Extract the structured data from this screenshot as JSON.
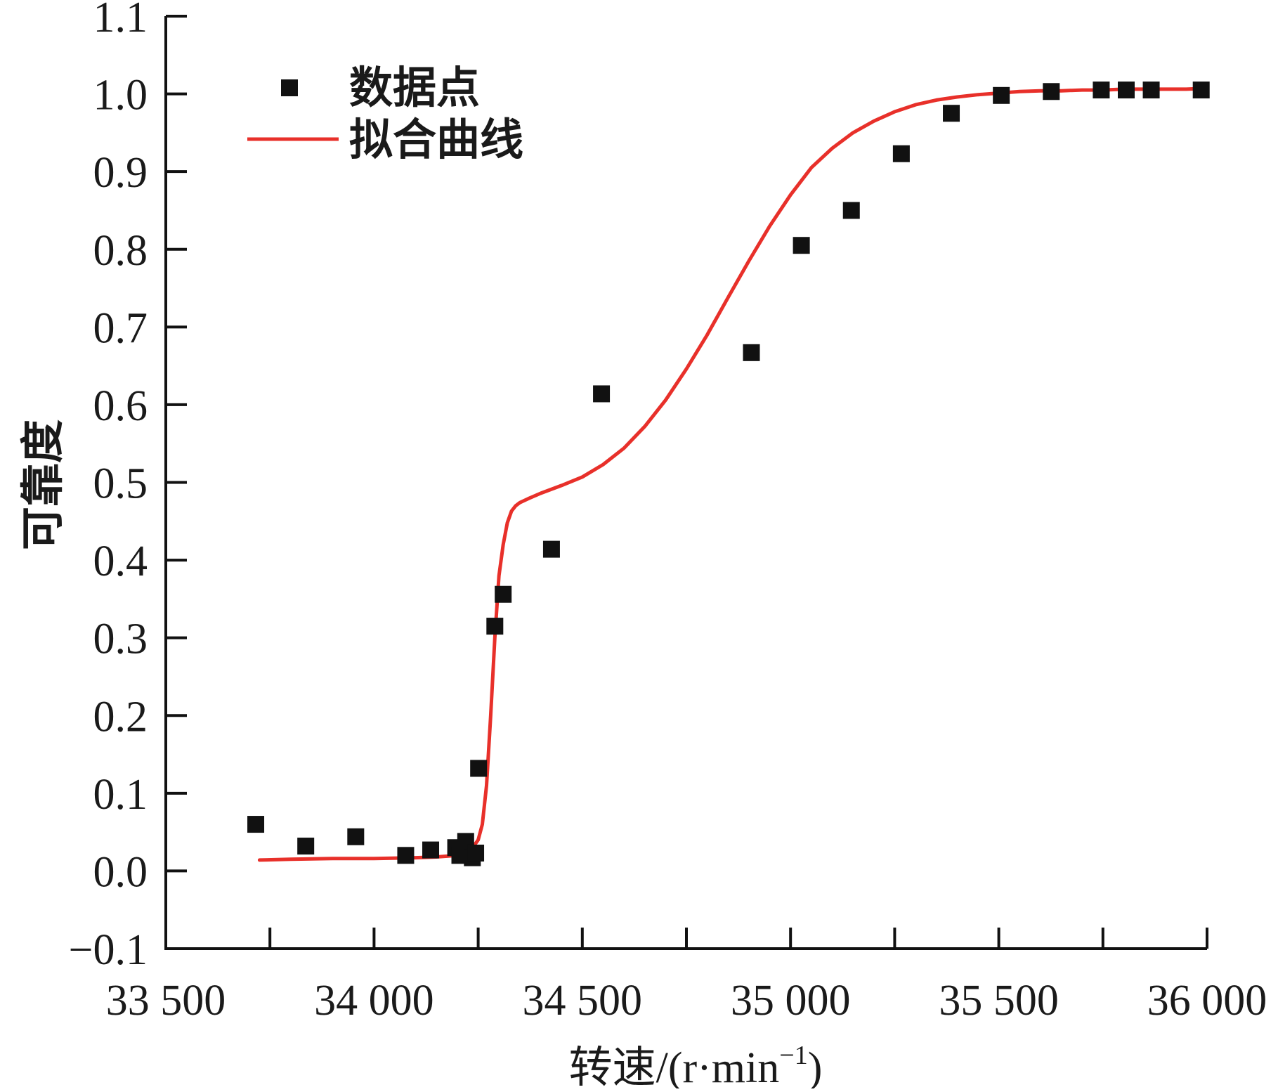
{
  "chart_data": {
    "type": "scatter",
    "xlabel": "转速/(r·min",
    "xlabel_sup": "−1",
    "xlabel_close": ")",
    "ylabel": "可靠度",
    "xlim": [
      33500,
      36000
    ],
    "ylim": [
      -0.1,
      1.1
    ],
    "x_ticks": [
      33500,
      34000,
      34500,
      35000,
      35500,
      36000
    ],
    "x_tick_labels": [
      "33 500",
      "34 000",
      "34 500",
      "35 000",
      "35 500",
      "36 000"
    ],
    "y_ticks": [
      -0.1,
      0.0,
      0.1,
      0.2,
      0.3,
      0.4,
      0.5,
      0.6,
      0.7,
      0.8,
      0.9,
      1.0,
      1.1
    ],
    "y_tick_labels": [
      "−0.1",
      "0.0",
      "0.1",
      "0.2",
      "0.3",
      "0.4",
      "0.5",
      "0.6",
      "0.7",
      "0.8",
      "0.9",
      "1.0",
      "1.1"
    ],
    "legend_position": "top-left",
    "series": [
      {
        "name": "数据点",
        "kind": "markers",
        "color": "#111111",
        "x": [
          33716,
          33836,
          33956,
          34076,
          34136,
          34196,
          34206,
          34220,
          34236,
          34244,
          34251,
          34290,
          34310,
          34426,
          34546,
          34906,
          35026,
          35146,
          35266,
          35386,
          35506,
          35626,
          35746,
          35806,
          35866,
          35986
        ],
        "y": [
          0.06,
          0.032,
          0.044,
          0.02,
          0.027,
          0.03,
          0.02,
          0.038,
          0.017,
          0.023,
          0.132,
          0.315,
          0.356,
          0.414,
          0.614,
          0.667,
          0.805,
          0.85,
          0.923,
          0.975,
          0.998,
          1.003,
          1.005,
          1.005,
          1.005,
          1.005
        ]
      },
      {
        "name": "拟合曲线",
        "kind": "line",
        "color": "#e8302a",
        "x": [
          33725,
          33800,
          33900,
          34000,
          34100,
          34150,
          34200,
          34230,
          34250,
          34260,
          34270,
          34280,
          34290,
          34300,
          34310,
          34320,
          34330,
          34340,
          34350,
          34370,
          34400,
          34450,
          34500,
          34550,
          34600,
          34650,
          34700,
          34750,
          34800,
          34850,
          34900,
          34950,
          35000,
          35050,
          35100,
          35150,
          35200,
          35250,
          35300,
          35350,
          35400,
          35450,
          35500,
          35550,
          35600,
          35650,
          35700,
          35750,
          35800,
          35850,
          35900,
          35950,
          36000
        ],
        "y": [
          0.014,
          0.015,
          0.016,
          0.016,
          0.017,
          0.018,
          0.02,
          0.025,
          0.04,
          0.06,
          0.11,
          0.2,
          0.3,
          0.38,
          0.42,
          0.448,
          0.463,
          0.47,
          0.474,
          0.479,
          0.486,
          0.496,
          0.507,
          0.523,
          0.544,
          0.572,
          0.606,
          0.646,
          0.69,
          0.738,
          0.785,
          0.83,
          0.87,
          0.905,
          0.93,
          0.95,
          0.965,
          0.977,
          0.986,
          0.992,
          0.996,
          0.999,
          1.001,
          1.003,
          1.004,
          1.004,
          1.005,
          1.005,
          1.006,
          1.006,
          1.006,
          1.006,
          1.007
        ]
      }
    ]
  }
}
